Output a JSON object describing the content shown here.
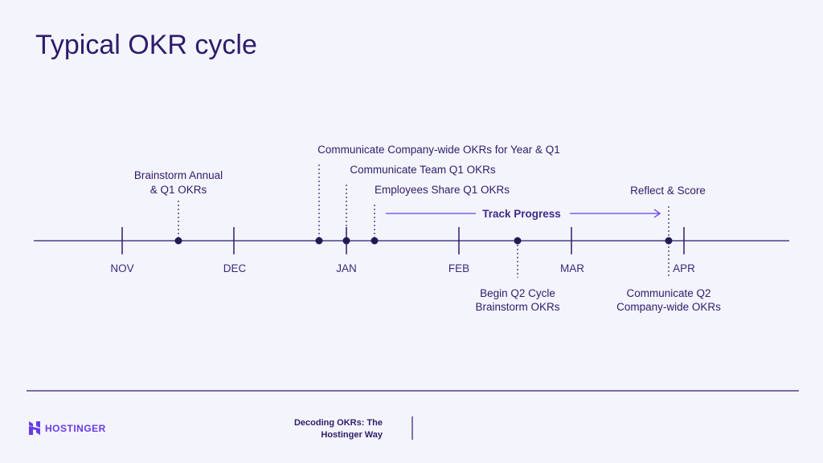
{
  "title": "Typical OKR cycle",
  "months": [
    "NOV",
    "DEC",
    "JAN",
    "FEB",
    "MAR",
    "APR"
  ],
  "events": {
    "brainstorm": [
      "Brainstorm Annual",
      "& Q1 OKRs"
    ],
    "company_wide": "Communicate Company-wide OKRs for Year & Q1",
    "team": "Communicate Team Q1 OKRs",
    "employees": "Employees Share Q1 OKRs",
    "reflect": "Reflect & Score",
    "begin_q2": [
      "Begin Q2 Cycle",
      "Brainstorm OKRs"
    ],
    "communicate_q2": [
      "Communicate Q2",
      "Company-wide OKRs"
    ]
  },
  "track_progress": "Track Progress",
  "footer": {
    "brand": "HOSTINGER",
    "doc_title": [
      "Decoding OKRs: The",
      "Hostinger Way"
    ]
  },
  "colors": {
    "navy": "#2f1c6a",
    "accent": "#673de6",
    "background": "#f4f4fd"
  }
}
